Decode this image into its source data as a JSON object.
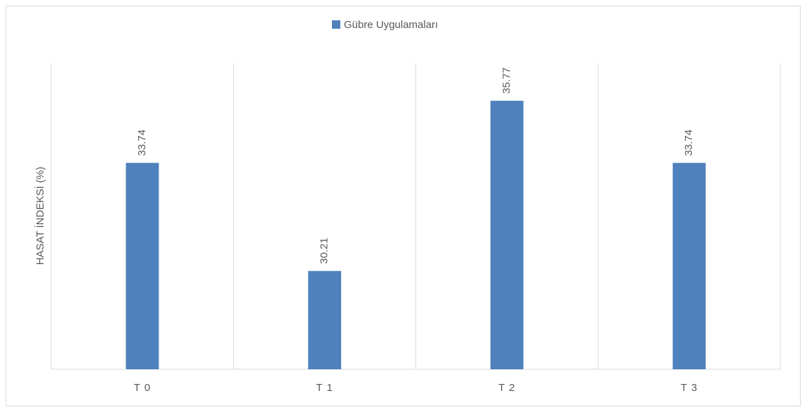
{
  "chart_data": {
    "type": "bar",
    "y_axis_label": "HASAT İNDEKSİ (%)",
    "categories": [
      "T 0",
      "T 1",
      "T 2",
      "T 3"
    ],
    "series": [
      {
        "name": "Gübre Uygulamaları",
        "color": "#4f81bd",
        "values": [
          33.74,
          30.21,
          35.77,
          33.74
        ]
      }
    ],
    "ylim": [
      27,
      37
    ],
    "legend": "top",
    "grid": true
  }
}
